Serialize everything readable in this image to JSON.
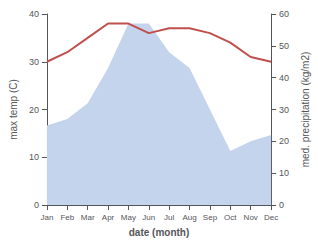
{
  "chart_data": {
    "type": "line",
    "xlabel": "date (month)",
    "ylabel": "max temp (C)",
    "y2label": "med. precipitation (kg/m2)",
    "categories": [
      "Jan",
      "Feb",
      "Mar",
      "Apr",
      "May",
      "Jun",
      "Jul",
      "Aug",
      "Sep",
      "Oct",
      "Nov",
      "Dec"
    ],
    "series": [
      {
        "type": "area",
        "axis": "y2",
        "color": "#c5d4ed",
        "values": [
          25,
          27,
          32,
          43,
          57,
          57,
          48,
          43,
          30,
          17,
          20,
          22
        ]
      },
      {
        "type": "line",
        "color": "#c0504d",
        "values": [
          30,
          32,
          35,
          38,
          38,
          36,
          37,
          37,
          36,
          34,
          31,
          30
        ]
      }
    ],
    "ylim": [
      0,
      40
    ],
    "yticks": [
      0,
      10,
      20,
      30,
      40
    ],
    "y2lim": [
      0,
      60
    ],
    "y2ticks": [
      0,
      10,
      20,
      30,
      40,
      50,
      60
    ],
    "grid": false
  }
}
